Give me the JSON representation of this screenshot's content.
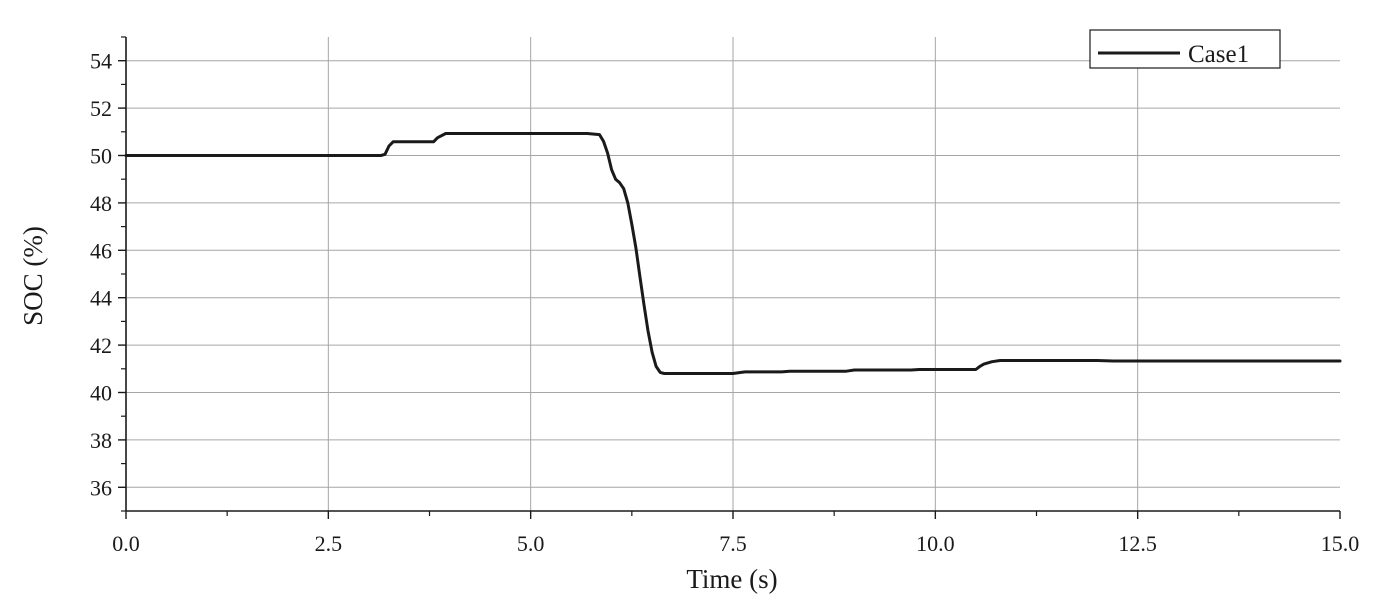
{
  "chart_data": {
    "type": "line",
    "title": "",
    "xlabel": "Time (s)",
    "ylabel": "SOC (%)",
    "xlim": [
      0,
      15
    ],
    "ylim": [
      35,
      55
    ],
    "x_ticks": [
      0.0,
      2.5,
      5.0,
      7.5,
      10.0,
      12.5,
      15.0
    ],
    "x_tick_labels": [
      "0.0",
      "2.5",
      "5.0",
      "7.5",
      "10.0",
      "12.5",
      "15.0"
    ],
    "y_ticks": [
      36,
      38,
      40,
      42,
      44,
      46,
      48,
      50,
      52,
      54
    ],
    "y_tick_labels": [
      "36",
      "38",
      "40",
      "42",
      "44",
      "46",
      "48",
      "50",
      "52",
      "54"
    ],
    "grid": true,
    "legend_position": "top-right",
    "series": [
      {
        "name": "Case1",
        "color": "#1a1a1a",
        "x": [
          0.0,
          3.15,
          3.2,
          3.25,
          3.3,
          3.8,
          3.85,
          3.95,
          5.7,
          5.85,
          5.9,
          5.95,
          6.0,
          6.05,
          6.1,
          6.15,
          6.2,
          6.25,
          6.3,
          6.35,
          6.4,
          6.45,
          6.5,
          6.55,
          6.6,
          6.65,
          6.7,
          7.5,
          7.6,
          7.65,
          8.1,
          8.2,
          8.9,
          9.0,
          9.7,
          9.8,
          10.5,
          10.55,
          10.6,
          10.7,
          10.8,
          12.0,
          12.2,
          15.0
        ],
        "y": [
          50.0,
          50.0,
          50.05,
          50.4,
          50.58,
          50.58,
          50.75,
          50.93,
          50.93,
          50.88,
          50.6,
          50.1,
          49.4,
          49.0,
          48.85,
          48.6,
          48.0,
          47.1,
          46.1,
          44.9,
          43.7,
          42.6,
          41.7,
          41.1,
          40.85,
          40.8,
          40.8,
          40.8,
          40.85,
          40.87,
          40.87,
          40.9,
          40.9,
          40.95,
          40.95,
          40.97,
          40.97,
          41.1,
          41.2,
          41.3,
          41.35,
          41.35,
          41.33,
          41.33
        ]
      }
    ]
  }
}
